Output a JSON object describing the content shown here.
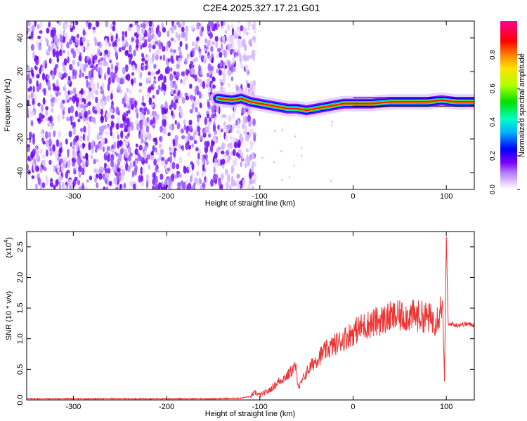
{
  "title": "C2E4.2025.327.17.21.G01",
  "chart_data": [
    {
      "type": "heatmap",
      "xlabel": "Height of straight line (km)",
      "ylabel": "Frequency (Hz)",
      "xlim": [
        -350,
        130
      ],
      "ylim": [
        -50,
        50
      ],
      "xticks": [
        -300,
        -200,
        -100,
        0,
        100
      ],
      "yticks": [
        -40,
        -20,
        0,
        20,
        40
      ],
      "noise_region_end_x": -105,
      "ridge": [
        {
          "x": -145,
          "y": 4
        },
        {
          "x": -130,
          "y": 3
        },
        {
          "x": -120,
          "y": 4
        },
        {
          "x": -110,
          "y": 2
        },
        {
          "x": -100,
          "y": 1
        },
        {
          "x": -90,
          "y": 0
        },
        {
          "x": -80,
          "y": -1
        },
        {
          "x": -70,
          "y": -2
        },
        {
          "x": -60,
          "y": -2
        },
        {
          "x": -50,
          "y": -3
        },
        {
          "x": -40,
          "y": -2
        },
        {
          "x": -30,
          "y": -1
        },
        {
          "x": -20,
          "y": 0
        },
        {
          "x": -10,
          "y": 1
        },
        {
          "x": 0,
          "y": 1
        },
        {
          "x": 20,
          "y": 1
        },
        {
          "x": 40,
          "y": 2
        },
        {
          "x": 60,
          "y": 2
        },
        {
          "x": 80,
          "y": 2
        },
        {
          "x": 95,
          "y": 3
        },
        {
          "x": 110,
          "y": 2
        },
        {
          "x": 130,
          "y": 2
        }
      ],
      "colorbar": {
        "label": "Normalized spectral amplitude",
        "range": [
          0,
          1
        ],
        "ticks": [
          "0.0",
          "0.2",
          "0.4",
          "0.6",
          "0.8"
        ],
        "colors": [
          "#ffffff",
          "#d9b3ff",
          "#7b00ff",
          "#0000ff",
          "#00b4ff",
          "#00ffb0",
          "#00e000",
          "#b4ff00",
          "#ffe000",
          "#ff8000",
          "#ff0000",
          "#ff0090"
        ]
      }
    },
    {
      "type": "line",
      "xlabel": "Height of straight line (km)",
      "ylabel": "SNR (10 * v/v)",
      "exponent_label": "(x10",
      "exponent": "4",
      "xlim": [
        -350,
        130
      ],
      "ylim": [
        0,
        2.75
      ],
      "xticks": [
        -300,
        -200,
        -100,
        0,
        100
      ],
      "yticks": [
        "0.0",
        "0.5",
        "1.0",
        "1.5",
        "2.0",
        "2.5"
      ],
      "color": "#ee3333",
      "series": [
        {
          "points": [
            [
              -350,
              0.02
            ],
            [
              -300,
              0.02
            ],
            [
              -250,
              0.02
            ],
            [
              -200,
              0.02
            ],
            [
              -150,
              0.02
            ],
            [
              -120,
              0.03
            ],
            [
              -110,
              0.06
            ],
            [
              -105,
              0.12
            ],
            [
              -100,
              0.08
            ],
            [
              -90,
              0.15
            ],
            [
              -80,
              0.3
            ],
            [
              -70,
              0.4
            ],
            [
              -62,
              0.55
            ],
            [
              -58,
              0.2
            ],
            [
              -50,
              0.45
            ],
            [
              -40,
              0.65
            ],
            [
              -30,
              0.8
            ],
            [
              -20,
              0.9
            ],
            [
              -10,
              1.0
            ],
            [
              0,
              1.1
            ],
            [
              10,
              1.2
            ],
            [
              20,
              1.25
            ],
            [
              30,
              1.3
            ],
            [
              40,
              1.35
            ],
            [
              50,
              1.36
            ],
            [
              60,
              1.38
            ],
            [
              70,
              1.37
            ],
            [
              80,
              1.35
            ],
            [
              88,
              1.3
            ],
            [
              92,
              1.4
            ],
            [
              96,
              1.6
            ],
            [
              98,
              0.3
            ],
            [
              100,
              2.7
            ],
            [
              102,
              1.2
            ],
            [
              105,
              1.25
            ],
            [
              110,
              1.22
            ],
            [
              120,
              1.24
            ],
            [
              130,
              1.23
            ]
          ]
        }
      ]
    }
  ]
}
